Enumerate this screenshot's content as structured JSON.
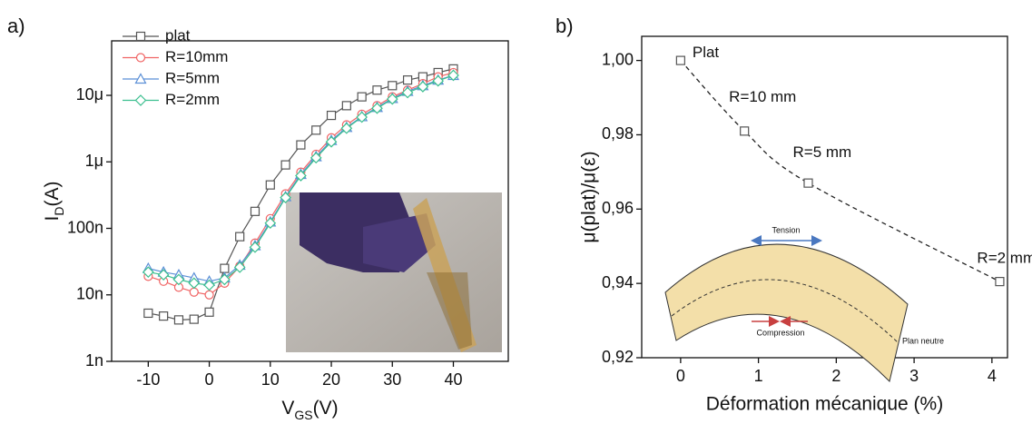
{
  "chart_data": [
    {
      "type": "line",
      "panel_label": "a)",
      "xlabel": [
        "V",
        "GS",
        "(V)"
      ],
      "ylabel": [
        "I",
        "D",
        "(A)"
      ],
      "x": [
        -10,
        -7.5,
        -5,
        -2.5,
        0,
        2.5,
        5,
        7.5,
        10,
        12.5,
        15,
        17.5,
        20,
        22.5,
        25,
        27.5,
        30,
        32.5,
        35,
        37.5,
        40
      ],
      "series": [
        {
          "name": "plat",
          "color": "#555555",
          "marker": "square",
          "values": [
            5.3e-09,
            4.8e-09,
            4.2e-09,
            4.3e-09,
            5.5e-09,
            2.5e-08,
            7.5e-08,
            1.8e-07,
            4.5e-07,
            9e-07,
            1.8e-06,
            3e-06,
            5e-06,
            7e-06,
            9.5e-06,
            1.2e-05,
            1.4e-05,
            1.7e-05,
            1.9e-05,
            2.2e-05,
            2.5e-05
          ]
        },
        {
          "name": "R=10mm",
          "color": "#f06464",
          "marker": "circle",
          "values": [
            1.9e-08,
            1.6e-08,
            1.3e-08,
            1.1e-08,
            1e-08,
            1.5e-08,
            2.7e-08,
            6e-08,
            1.4e-07,
            3.3e-07,
            7e-07,
            1.3e-06,
            2.3e-06,
            3.6e-06,
            5.2e-06,
            7e-06,
            9.5e-06,
            1.2e-05,
            1.5e-05,
            1.9e-05,
            2.2e-05
          ]
        },
        {
          "name": "R=5mm",
          "color": "#5b8fd6",
          "marker": "triangle",
          "values": [
            2.5e-08,
            2.2e-08,
            2e-08,
            1.8e-08,
            1.6e-08,
            1.8e-08,
            2.8e-08,
            5.5e-08,
            1.25e-07,
            3e-07,
            6.5e-07,
            1.2e-06,
            2.1e-06,
            3.3e-06,
            4.8e-06,
            6.6e-06,
            9e-06,
            1.15e-05,
            1.4e-05,
            1.7e-05,
            2e-05
          ]
        },
        {
          "name": "R=2mm",
          "color": "#3cbf8f",
          "marker": "diamond",
          "values": [
            2.2e-08,
            2e-08,
            1.7e-08,
            1.5e-08,
            1.4e-08,
            1.7e-08,
            2.6e-08,
            5.2e-08,
            1.2e-07,
            2.9e-07,
            6.2e-07,
            1.15e-06,
            2e-06,
            3.2e-06,
            4.7e-06,
            6.4e-06,
            8.8e-06,
            1.1e-05,
            1.35e-05,
            1.65e-05,
            2e-05
          ]
        }
      ],
      "xlim": [
        -16,
        49
      ],
      "ylim": [
        1e-09,
        6.6e-05
      ],
      "log_y": true,
      "xticks": [
        -10,
        0,
        10,
        20,
        30,
        40
      ],
      "yticks": [
        {
          "value": 1e-09,
          "label": "1n"
        },
        {
          "value": 1e-08,
          "label": "10n"
        },
        {
          "value": 1e-07,
          "label": "100n"
        },
        {
          "value": 1e-06,
          "label": "1μ"
        },
        {
          "value": 1e-05,
          "label": "10μ"
        }
      ],
      "legend": "upper left"
    },
    {
      "type": "scatter",
      "panel_label": "b)",
      "xlabel": "Déformation mécanique (%)",
      "ylabel": "μ(plat)/μ(ε)",
      "x": [
        0,
        0.82,
        1.64,
        4.1
      ],
      "values": [
        1.0,
        0.981,
        0.967,
        0.9405
      ],
      "color": "#555555",
      "marker": "square",
      "line_style": "dashed",
      "xlim": [
        -0.5,
        4.2
      ],
      "ylim": [
        0.92,
        1.0065
      ],
      "xticks": [
        0,
        1,
        2,
        3,
        4
      ],
      "yticks": [
        {
          "value": 1.0,
          "label": "1,00"
        },
        {
          "value": 0.98,
          "label": "0,98"
        },
        {
          "value": 0.96,
          "label": "0,96"
        },
        {
          "value": 0.94,
          "label": "0,94"
        },
        {
          "value": 0.92,
          "label": "0,92"
        }
      ],
      "annotations": [
        "Plat",
        "R=10 mm",
        "R=5 mm",
        "R=2 mm"
      ],
      "inset_labels": [
        "Tension",
        "Compression",
        "Plan neutre"
      ]
    }
  ]
}
